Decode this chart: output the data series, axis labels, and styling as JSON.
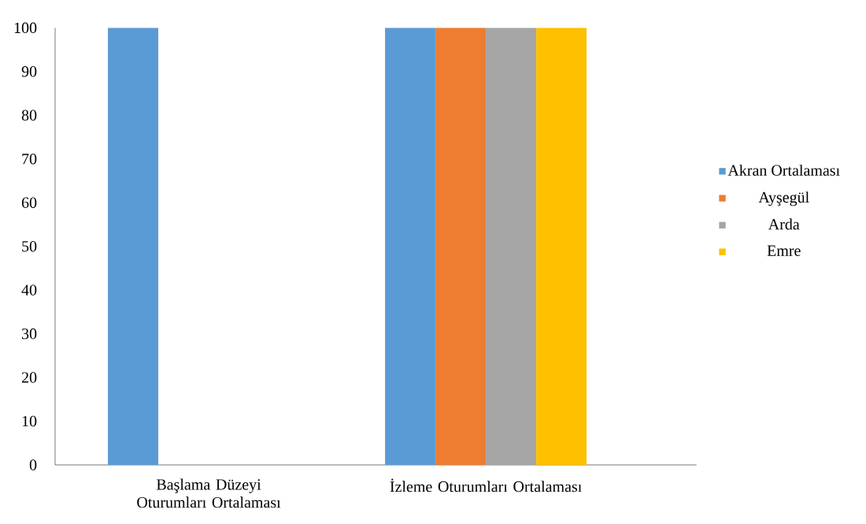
{
  "chart_data": {
    "type": "bar",
    "categories": [
      "Başlama Düzeyi Oturumları Ortalaması",
      "İzleme Oturumları Ortalaması"
    ],
    "series": [
      {
        "name": "Akran Ortalaması",
        "color": "#5b9bd5",
        "values": [
          100,
          100
        ]
      },
      {
        "name": "Ayşegül",
        "color": "#ed7d31",
        "values": [
          0,
          100
        ]
      },
      {
        "name": "Arda",
        "color": "#a5a5a5",
        "values": [
          0,
          100
        ]
      },
      {
        "name": "Emre",
        "color": "#ffc000",
        "values": [
          0,
          100
        ]
      }
    ],
    "ylim": [
      0,
      100
    ],
    "yticks": [
      0,
      10,
      20,
      30,
      40,
      50,
      60,
      70,
      80,
      90,
      100
    ],
    "grid": false,
    "legend": "right"
  }
}
